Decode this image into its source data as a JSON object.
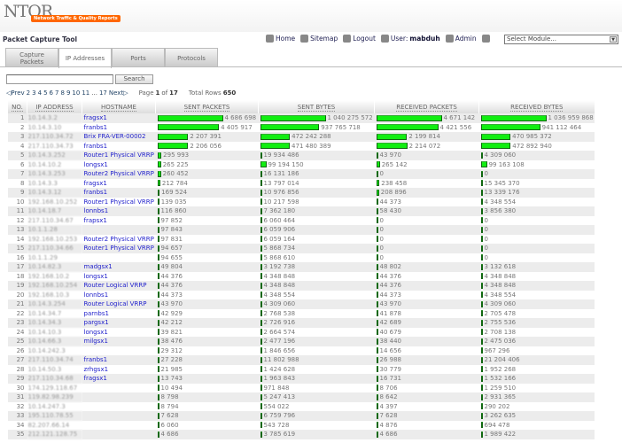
{
  "header": {
    "logo": "NTQR",
    "tagline": "Network Traffic & Quality Reports",
    "tool_title": "Packet Capture Tool",
    "nav": {
      "home": "Home",
      "sitemap": "Sitemap",
      "logout": "Logout",
      "user_label": "User:",
      "user_name": "mabduh",
      "admin": "Admin"
    },
    "module_select": "Select Module..."
  },
  "tabs": [
    {
      "label": "Capture Packets"
    },
    {
      "label": "IP Addresses",
      "active": true
    },
    {
      "label": "Ports"
    },
    {
      "label": "Protocols"
    }
  ],
  "search": {
    "value": "",
    "button": "Search"
  },
  "pager": {
    "prev": "Prev",
    "pages": [
      "2",
      "3",
      "4",
      "5",
      "6",
      "7",
      "8",
      "9",
      "10",
      "11"
    ],
    "ellipsis": "...",
    "last": "17",
    "next": "Next",
    "page_label": "Page",
    "current": "1",
    "of": "of",
    "total_pages": "17",
    "total_label": "Total Rows",
    "total_rows": "650"
  },
  "table": {
    "headers": [
      "NO.",
      "IP ADDRESS",
      "HOSTNAME",
      "SENT PACKETS",
      "SENT BYTES",
      "RECEIVED PACKETS",
      "RECEIVED BYTES"
    ],
    "bar_color": "#22ee22",
    "rows": [
      [
        "1",
        "10.14.3.2",
        "fragsx1",
        "4 686 698",
        "1 040 275 572",
        "4 671 142",
        "1 036 959 868"
      ],
      [
        "2",
        "10.14.3.10",
        "franbs1",
        "4 405 917",
        "937 765 718",
        "4 421 556",
        "941 112 464"
      ],
      [
        "3",
        "217.110.34.72",
        "Brix FRA-VER-00002",
        "2 207 391",
        "472 242 288",
        "2 199 814",
        "470 985 372"
      ],
      [
        "4",
        "217.110.34.73",
        "franbs1",
        "2 206 056",
        "471 480 389",
        "2 214 072",
        "472 892 940"
      ],
      [
        "5",
        "10.14.3.252",
        "Router1 Physical VRRP",
        "295 993",
        "19 934 486",
        "43 970",
        "4 309 060"
      ],
      [
        "6",
        "10.14.10.2",
        "longsx1",
        "265 225",
        "99 194 150",
        "265 142",
        "99 163 108"
      ],
      [
        "7",
        "10.14.3.253",
        "Router2 Physical VRRP",
        "260 452",
        "16 131 186",
        "0",
        "0"
      ],
      [
        "8",
        "10.14.3.3",
        "fragsx1",
        "212 784",
        "13 797 014",
        "238 458",
        "15 345 370"
      ],
      [
        "9",
        "10.14.3.12",
        "franbs1",
        "169 524",
        "10 976 856",
        "208 896",
        "13 339 176"
      ],
      [
        "10",
        "192.168.10.252",
        "Router1 Physical VRRP",
        "139 035",
        "10 217 598",
        "44 373",
        "4 348 554"
      ],
      [
        "11",
        "10.14.18.7",
        "lonnbs1",
        "116 860",
        "7 362 180",
        "58 430",
        "3 856 380"
      ],
      [
        "12",
        "217.110.34.67",
        "frapsx1",
        "97 852",
        "6 060 464",
        "0",
        "0"
      ],
      [
        "13",
        "10.1.1.28",
        "",
        "97 843",
        "6 059 906",
        "0",
        "0"
      ],
      [
        "14",
        "192.168.10.253",
        "Router2 Physical VRRP",
        "97 831",
        "6 059 164",
        "0",
        "0"
      ],
      [
        "15",
        "217.110.34.66",
        "Router1 Physical VRRP",
        "94 657",
        "5 868 734",
        "0",
        "0"
      ],
      [
        "16",
        "10.1.1.29",
        "",
        "94 655",
        "5 868 610",
        "0",
        "0"
      ],
      [
        "17",
        "10.14.82.3",
        "madgsx1",
        "49 804",
        "3 192 738",
        "48 802",
        "3 132 618"
      ],
      [
        "18",
        "192.168.10.2",
        "longsx1",
        "44 376",
        "4 348 848",
        "44 376",
        "4 348 848"
      ],
      [
        "19",
        "192.168.10.254",
        "Router Logical VRRP",
        "44 376",
        "4 348 848",
        "44 376",
        "4 348 848"
      ],
      [
        "20",
        "192.168.10.3",
        "lonnbs1",
        "44 373",
        "4 348 554",
        "44 373",
        "4 348 554"
      ],
      [
        "21",
        "10.14.3.254",
        "Router Logical VRRP",
        "43 970",
        "4 309 060",
        "43 970",
        "4 309 060"
      ],
      [
        "22",
        "10.14.34.7",
        "parnbs1",
        "42 929",
        "2 768 538",
        "41 878",
        "2 705 478"
      ],
      [
        "23",
        "10.14.34.3",
        "pargsx1",
        "42 212",
        "2 726 916",
        "42 689",
        "2 755 536"
      ],
      [
        "24",
        "10.14.10.3",
        "longsx1",
        "39 821",
        "2 664 574",
        "40 679",
        "2 708 138"
      ],
      [
        "25",
        "10.14.66.3",
        "milgsx1",
        "38 476",
        "2 477 196",
        "38 440",
        "2 475 036"
      ],
      [
        "26",
        "10.14.242.3",
        "",
        "29 312",
        "1 846 656",
        "14 656",
        "967 296"
      ],
      [
        "27",
        "217.110.34.74",
        "franbs1",
        "27 228",
        "11 802 988",
        "26 988",
        "21 204 406"
      ],
      [
        "28",
        "10.14.50.3",
        "zrhgsx1",
        "21 985",
        "1 424 628",
        "30 779",
        "1 952 268"
      ],
      [
        "29",
        "217.110.34.68",
        "fragsx1",
        "13 743",
        "1 963 843",
        "16 731",
        "1 532 166"
      ],
      [
        "30",
        "174.129.118.67",
        "",
        "10 494",
        "971 848",
        "8 706",
        "1 259 510"
      ],
      [
        "31",
        "119.82.98.239",
        "",
        "8 798",
        "5 247 413",
        "8 642",
        "2 931 365"
      ],
      [
        "32",
        "10.14.247.3",
        "",
        "8 794",
        "554 022",
        "4 397",
        "290 202"
      ],
      [
        "33",
        "195.110.78.55",
        "",
        "7 628",
        "6 759 796",
        "7 628",
        "3 262 635"
      ],
      [
        "34",
        "82.207.66.14",
        "",
        "6 060",
        "543 728",
        "4 876",
        "694 478"
      ],
      [
        "35",
        "212.121.128.75",
        "",
        "4 686",
        "3 785 619",
        "4 686",
        "1 989 422"
      ]
    ]
  }
}
